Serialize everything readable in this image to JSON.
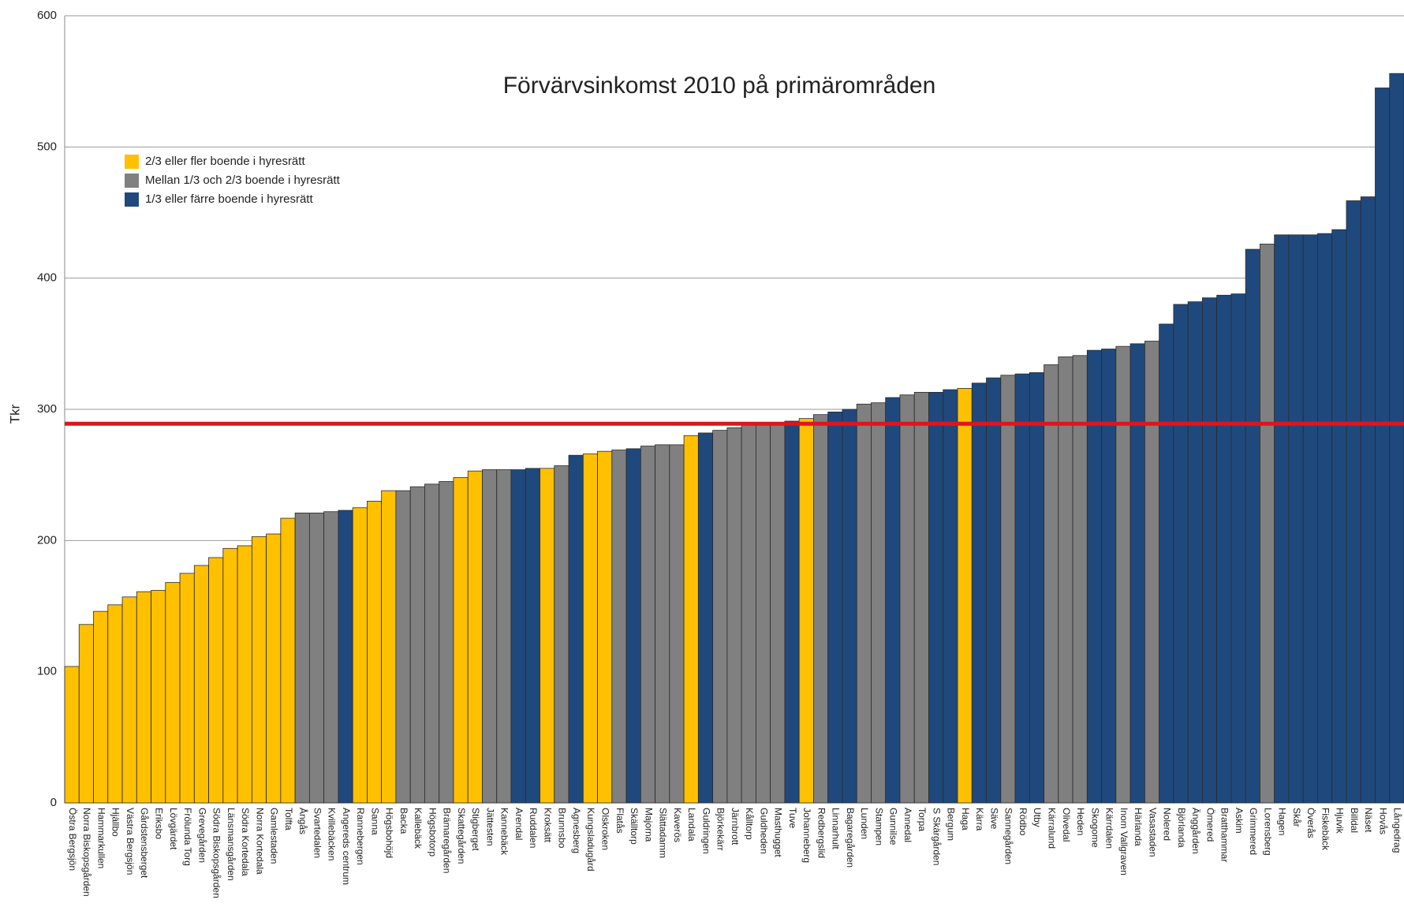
{
  "chart_data": {
    "type": "bar",
    "title": "Förvärvsinkomst  2010 på primärområden",
    "y_label": "Tkr",
    "categories": [
      "Östra Bergsjön",
      "Norra Biskopsgården",
      "Hammarkullen",
      "Hjällbo",
      "Västra Bergsjön",
      "Gårdstensberget",
      "Eriksbo",
      "Lövgärdet",
      "Frölunda Torg",
      "Grevegården",
      "Södra Biskopsgården",
      "Länsmansgården",
      "Södra Kortedala",
      "Norra Kortedala",
      "Gamlestaden",
      "Tolfta",
      "Ångås",
      "Svartedalen",
      "Kvillebäcken",
      "Angereds centrum",
      "Rannebergen",
      "Sanna",
      "Högsbohöjd",
      "Backa",
      "Kallebäck",
      "Högsbotorp",
      "Brämaregården",
      "Skattegården",
      "Stigberget",
      "Jättesten",
      "Kannebäck",
      "Arendal",
      "Ruddalen",
      "Kroksätt",
      "Brunnsbo",
      "Agnesberg",
      "Kungsladugård",
      "Olskroken",
      "Flatås",
      "Skälltorp",
      "Majorna",
      "Slättadamm",
      "Kaverös",
      "Landala",
      "Guldringen",
      "Björkekärr",
      "Järnbrott",
      "Kålltorp",
      "Guldheden",
      "Masthugget",
      "Tuve",
      "Johanneberg",
      "Redbergslid",
      "Linnarhult",
      "Bagaregården",
      "Lunden",
      "Stampen",
      "Gunnilse",
      "Annedal",
      "Torpa",
      "S Skärgården",
      "Bergum",
      "Haga",
      "Kärra",
      "Säve",
      "Sannegården",
      "Rödbo",
      "Utby",
      "Kärralund",
      "Olivedal",
      "Heden",
      "Skogome",
      "Kärrdalen",
      "Inom Vallgraven",
      "Härlanda",
      "Vasastaden",
      "Nolered",
      "Björlanda",
      "Änggården",
      "Ömered",
      "Bratthammar",
      "Askim",
      "Grimmered",
      "Lorensberg",
      "Hagen",
      "Skår",
      "Överås",
      "Fiskebäck",
      "Hjuvik",
      "Billdal",
      "Näset",
      "Hovås",
      "Långedrag"
    ],
    "values": [
      104,
      136,
      146,
      151,
      157,
      161,
      162,
      168,
      175,
      181,
      187,
      194,
      196,
      203,
      205,
      217,
      221,
      221,
      222,
      223,
      225,
      230,
      238,
      238,
      241,
      243,
      245,
      248,
      253,
      254,
      254,
      254,
      255,
      255,
      257,
      265,
      266,
      268,
      269,
      270,
      272,
      273,
      273,
      280,
      282,
      284,
      286,
      290,
      290,
      290,
      291,
      293,
      296,
      298,
      300,
      304,
      305,
      309,
      311,
      313,
      313,
      315,
      316,
      320,
      324,
      326,
      327,
      328,
      334,
      340,
      341,
      345,
      346,
      348,
      350,
      352,
      365,
      380,
      382,
      385,
      387,
      388,
      422,
      426,
      433,
      433,
      433,
      434,
      437,
      459,
      462,
      545,
      556
    ],
    "colors": [
      "#ffc000",
      "#ffc000",
      "#ffc000",
      "#ffc000",
      "#ffc000",
      "#ffc000",
      "#ffc000",
      "#ffc000",
      "#ffc000",
      "#ffc000",
      "#ffc000",
      "#ffc000",
      "#ffc000",
      "#ffc000",
      "#ffc000",
      "#ffc000",
      "#808080",
      "#808080",
      "#808080",
      "#1f497d",
      "#ffc000",
      "#ffc000",
      "#ffc000",
      "#808080",
      "#808080",
      "#808080",
      "#808080",
      "#ffc000",
      "#ffc000",
      "#808080",
      "#808080",
      "#1f497d",
      "#1f497d",
      "#ffc000",
      "#808080",
      "#1f497d",
      "#ffc000",
      "#ffc000",
      "#808080",
      "#1f497d",
      "#808080",
      "#808080",
      "#808080",
      "#ffc000",
      "#1f497d",
      "#808080",
      "#808080",
      "#808080",
      "#808080",
      "#808080",
      "#1f497d",
      "#ffc000",
      "#808080",
      "#1f497d",
      "#1f497d",
      "#808080",
      "#808080",
      "#1f497d",
      "#808080",
      "#808080",
      "#1f497d",
      "#1f497d",
      "#ffc000",
      "#1f497d",
      "#1f497d",
      "#808080",
      "#1f497d",
      "#1f497d",
      "#808080",
      "#808080",
      "#808080",
      "#1f497d",
      "#1f497d",
      "#808080",
      "#1f497d",
      "#808080",
      "#1f497d",
      "#1f497d",
      "#1f497d",
      "#1f497d",
      "#1f497d",
      "#1f497d",
      "#1f497d",
      "#808080",
      "#1f497d",
      "#1f497d",
      "#1f497d",
      "#1f497d",
      "#1f497d",
      "#1f497d",
      "#1f497d",
      "#1f497d",
      "#1f497d"
    ],
    "legend": [
      {
        "name": "2/3 eller fler boende i hyresrätt",
        "color": "#ffc000"
      },
      {
        "name": "Mellan 1/3 och 2/3 boende i hyresrätt",
        "color": "#808080"
      },
      {
        "name": "1/3 eller färre boende i hyresrätt",
        "color": "#1f497d"
      }
    ],
    "reference_line": 289,
    "reference_color": "#e0141e",
    "ylim": [
      0,
      600
    ],
    "yticks": [
      0,
      100,
      200,
      300,
      400,
      500,
      600
    ],
    "grid": true
  }
}
